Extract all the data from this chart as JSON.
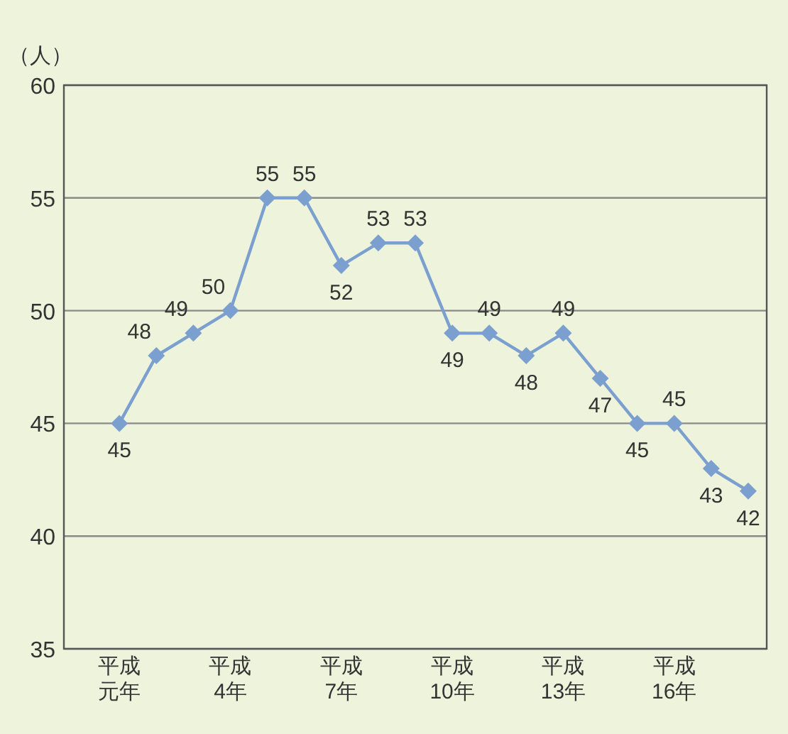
{
  "chart_data": {
    "type": "line",
    "ylabel": "（人）",
    "categories": [
      "平成元年",
      null,
      null,
      "平成4年",
      null,
      null,
      "平成7年",
      null,
      null,
      "平成10年",
      null,
      null,
      "平成13年",
      null,
      null,
      "平成16年",
      null,
      null
    ],
    "series": [
      {
        "color": "#7b9fcf",
        "values": [
          45,
          48,
          49,
          50,
          55,
          55,
          52,
          53,
          53,
          49,
          49,
          48,
          49,
          47,
          45,
          45,
          43,
          42
        ]
      }
    ],
    "ylim": [
      35,
      60
    ],
    "yticks": [
      35,
      40,
      45,
      50,
      55,
      60
    ],
    "grid": "y",
    "marker": "diamond",
    "line_style": "solid",
    "data_labels": true
  }
}
